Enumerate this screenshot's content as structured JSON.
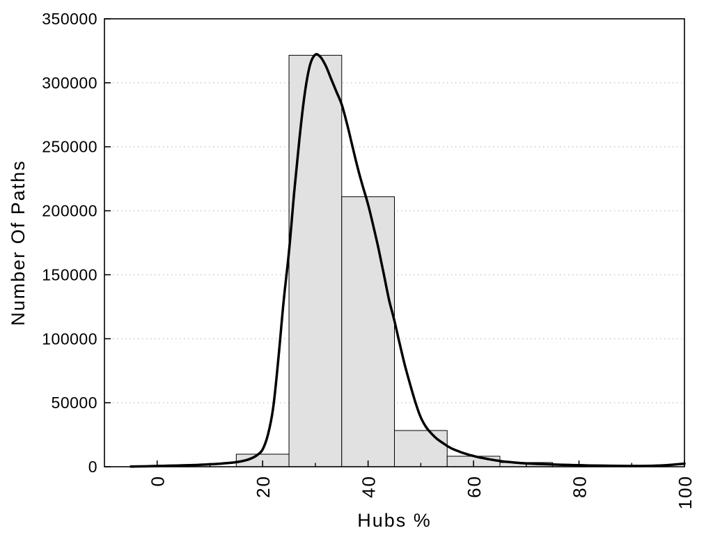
{
  "figure": {
    "background": "#ffffff",
    "text_color": "#000000"
  },
  "chart_data": {
    "type": "bar",
    "subtype": "histogram-with-density-curve",
    "title": "",
    "xlabel": "Hubs %",
    "ylabel": "Number Of Paths",
    "xlim": [
      -10,
      100
    ],
    "ylim": [
      0,
      350000
    ],
    "grid": "horizontal-dotted",
    "legend": "none",
    "x_major_ticks": [
      0,
      20,
      40,
      60,
      80,
      100
    ],
    "x_major_tick_labels": [
      "0",
      "20",
      "40",
      "60",
      "80",
      "100"
    ],
    "x_tick_label_rotation": -90,
    "x_minor_ticks": [
      10,
      30,
      50,
      70,
      90
    ],
    "y_major_ticks": [
      0,
      50000,
      100000,
      150000,
      200000,
      250000,
      300000,
      350000
    ],
    "y_major_tick_labels": [
      "0",
      "50000",
      "100000",
      "150000",
      "200000",
      "250000",
      "300000",
      "350000"
    ],
    "y_gridline_values": [
      50000,
      100000,
      150000,
      200000,
      250000,
      300000
    ],
    "bar_fill": "#e1e1e1",
    "bar_edge_color": "#000000",
    "line_color": "#000000",
    "grid_color": "#c4c4c4",
    "frame_color": "#000000",
    "bars": [
      {
        "x0": 15,
        "x1": 25,
        "count": 9800
      },
      {
        "x0": 25,
        "x1": 35,
        "count": 321500
      },
      {
        "x0": 35,
        "x1": 45,
        "count": 211000
      },
      {
        "x0": 45,
        "x1": 55,
        "count": 28300
      },
      {
        "x0": 55,
        "x1": 65,
        "count": 8200
      },
      {
        "x0": 65,
        "x1": 75,
        "count": 3300
      },
      {
        "x0": 75,
        "x1": 85,
        "count": 1400
      }
    ],
    "series": [
      {
        "name": "density-curve",
        "type": "line",
        "points": [
          [
            -5,
            150
          ],
          [
            -2,
            350
          ],
          [
            0,
            600
          ],
          [
            2,
            800
          ],
          [
            4,
            1000
          ],
          [
            6,
            1200
          ],
          [
            8,
            1500
          ],
          [
            10,
            1900
          ],
          [
            12,
            2400
          ],
          [
            14,
            3100
          ],
          [
            15,
            3600
          ],
          [
            16,
            4300
          ],
          [
            17,
            5300
          ],
          [
            18,
            6800
          ],
          [
            19,
            9200
          ],
          [
            20,
            13500
          ],
          [
            21,
            25000
          ],
          [
            22,
            46000
          ],
          [
            23,
            85000
          ],
          [
            24,
            130000
          ],
          [
            25,
            168000
          ],
          [
            26,
            215000
          ],
          [
            27,
            257000
          ],
          [
            28,
            292000
          ],
          [
            29,
            314000
          ],
          [
            30,
            322000
          ],
          [
            31,
            320000
          ],
          [
            32,
            313000
          ],
          [
            33,
            303000
          ],
          [
            34,
            293000
          ],
          [
            35,
            283000
          ],
          [
            36,
            268000
          ],
          [
            37,
            251000
          ],
          [
            38,
            234000
          ],
          [
            39,
            219000
          ],
          [
            40,
            205000
          ],
          [
            41,
            188000
          ],
          [
            42,
            170000
          ],
          [
            43,
            150000
          ],
          [
            44,
            130000
          ],
          [
            45,
            114000
          ],
          [
            46,
            96000
          ],
          [
            47,
            79000
          ],
          [
            48,
            64000
          ],
          [
            49,
            50000
          ],
          [
            50,
            38500
          ],
          [
            51,
            31000
          ],
          [
            52,
            26000
          ],
          [
            53,
            22000
          ],
          [
            54,
            19000
          ],
          [
            55,
            16300
          ],
          [
            56,
            14000
          ],
          [
            57,
            12300
          ],
          [
            58,
            10800
          ],
          [
            59,
            9500
          ],
          [
            60,
            8400
          ],
          [
            61,
            7400
          ],
          [
            62,
            6600
          ],
          [
            63,
            5800
          ],
          [
            64,
            5100
          ],
          [
            65,
            4500
          ],
          [
            66,
            4000
          ],
          [
            67,
            3600
          ],
          [
            68,
            3200
          ],
          [
            69,
            2900
          ],
          [
            70,
            2600
          ],
          [
            72,
            2200
          ],
          [
            74,
            1900
          ],
          [
            76,
            1650
          ],
          [
            78,
            1400
          ],
          [
            80,
            1200
          ],
          [
            82,
            1000
          ],
          [
            85,
            800
          ],
          [
            88,
            650
          ],
          [
            90,
            600
          ],
          [
            92,
            620
          ],
          [
            94,
            780
          ],
          [
            96,
            1100
          ],
          [
            98,
            1700
          ],
          [
            100,
            2400
          ]
        ]
      }
    ]
  }
}
